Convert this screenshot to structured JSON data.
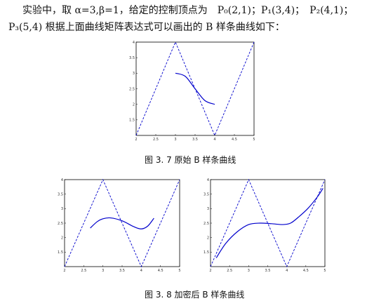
{
  "text": {
    "line1": "实验中，取 α=3,β=1，给定的控制顶点为　P₀(2,1)；P₁(3,4)；　P₂(4,1)；",
    "line2": "P₃(5,4) 根据上面曲线矩阵表达式可以画出的 B 样条曲线如下：",
    "caption1": "图 3. 7  原始 B 样条曲线",
    "caption2": "图 3. 8  加密后 B 样条曲线"
  },
  "chart_data": [
    {
      "type": "line",
      "title": "",
      "xlabel": "",
      "ylabel": "",
      "xlim": [
        2,
        5
      ],
      "ylim": [
        1,
        4
      ],
      "xticks": [
        "2",
        "2.5",
        "3",
        "3.5",
        "4",
        "4.5",
        "5"
      ],
      "yticks": [
        "1.5",
        "2",
        "2.5",
        "3",
        "3.5",
        "4"
      ],
      "grid": false,
      "series": [
        {
          "style": "dashed",
          "color": "#0000cc",
          "x": [
            2,
            3,
            4,
            5
          ],
          "y": [
            1,
            4,
            1,
            4
          ]
        },
        {
          "style": "solid",
          "color": "#0000cc",
          "x": [
            3.0,
            3.25,
            3.5,
            3.75,
            4.0
          ],
          "y": [
            3.0,
            2.9,
            2.5,
            2.12,
            2.0
          ]
        }
      ]
    },
    {
      "type": "line",
      "title": "",
      "xlabel": "",
      "ylabel": "",
      "xlim": [
        2,
        5
      ],
      "ylim": [
        1,
        4
      ],
      "xticks": [
        "2",
        "2.5",
        "3",
        "3.5",
        "4",
        "4.5",
        "5"
      ],
      "yticks": [
        "1.5",
        "2",
        "2.5",
        "3",
        "3.5",
        "4"
      ],
      "grid": false,
      "series": [
        {
          "style": "dashed",
          "color": "#0000cc",
          "x": [
            2,
            3,
            4,
            5
          ],
          "y": [
            1,
            4,
            1,
            4
          ]
        },
        {
          "style": "solid",
          "color": "#0000cc",
          "x": [
            2.67,
            2.85,
            3.0,
            3.2,
            3.5,
            3.8,
            4.0,
            4.17,
            4.33
          ],
          "y": [
            2.33,
            2.55,
            2.65,
            2.68,
            2.58,
            2.38,
            2.3,
            2.4,
            2.67
          ]
        }
      ]
    },
    {
      "type": "line",
      "title": "",
      "xlabel": "",
      "ylabel": "",
      "xlim": [
        2,
        5
      ],
      "ylim": [
        1,
        4
      ],
      "xticks": [
        "2",
        "2.5",
        "3",
        "3.5",
        "4",
        "4.5",
        "5"
      ],
      "yticks": [
        "1.5",
        "2",
        "2.5",
        "3",
        "3.5",
        "4"
      ],
      "grid": false,
      "series": [
        {
          "style": "dashed",
          "color": "#0000cc",
          "x": [
            2,
            3,
            4,
            5
          ],
          "y": [
            1,
            4,
            1,
            4
          ]
        },
        {
          "style": "solid",
          "color": "#0000cc",
          "x": [
            2.15,
            2.4,
            2.7,
            3.0,
            3.3,
            3.6,
            3.9,
            4.1,
            4.3,
            4.55,
            4.8,
            4.95
          ],
          "y": [
            1.3,
            1.8,
            2.2,
            2.45,
            2.5,
            2.48,
            2.45,
            2.5,
            2.7,
            3.0,
            3.4,
            3.7
          ]
        }
      ]
    }
  ]
}
